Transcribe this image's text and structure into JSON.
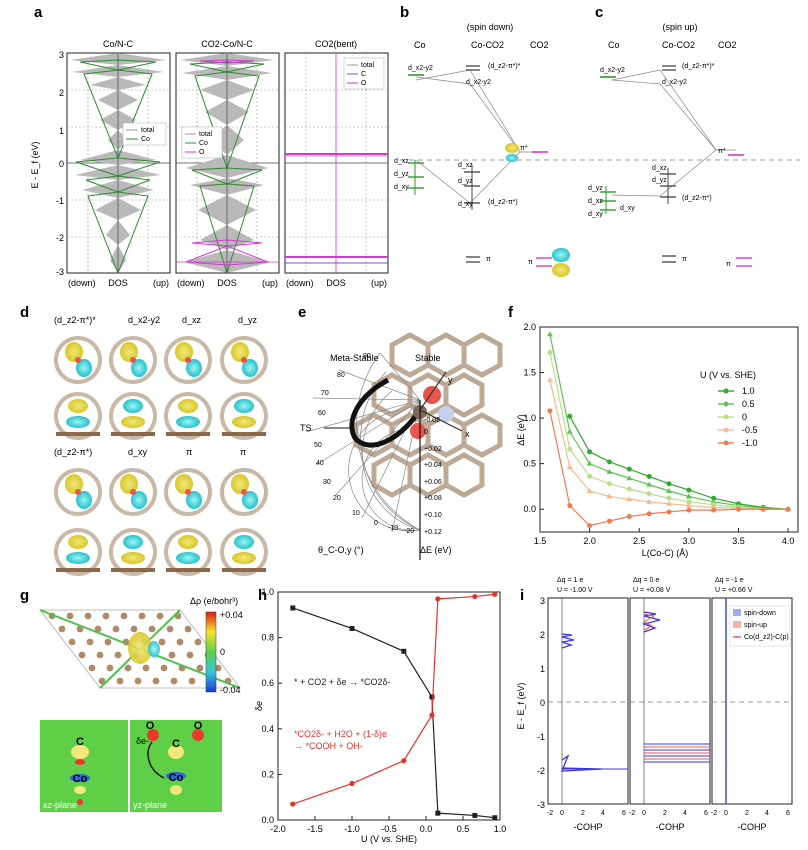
{
  "panels": {
    "a": {
      "label": "a",
      "ylabel": "E - E_f (eV)",
      "yticks": [
        "3",
        "2",
        "1",
        "0",
        "-1",
        "-2",
        "-3"
      ],
      "xlabels": [
        "(down)",
        "DOS",
        "(up)"
      ],
      "subplots": [
        {
          "title": "Co/N-C",
          "legend": [
            "total",
            "Co"
          ]
        },
        {
          "title": "CO2-Co/N-C",
          "legend": [
            "total",
            "Co",
            "O"
          ]
        },
        {
          "title": "CO2(bent)",
          "legend": [
            "total",
            "C",
            "O"
          ]
        }
      ]
    },
    "b": {
      "label": "b",
      "spin": "(spin down)",
      "columns": [
        "Co",
        "Co-CO2",
        "CO2"
      ],
      "levels": [
        "d_x2-y2",
        "(d_z2-π*)*",
        "d_x2-y2",
        "π*",
        "d_xz",
        "d_yz",
        "d_xz",
        "d_xy",
        "d_yz",
        "d_xy",
        "(d_z2-π*)",
        "π",
        "π"
      ]
    },
    "c": {
      "label": "c",
      "spin": "(spin up)",
      "columns": [
        "Co",
        "Co-CO2",
        "CO2"
      ],
      "levels": [
        "d_x2-y2",
        "(d_z2-π*)*",
        "d_x2-y2",
        "π*",
        "d_xz",
        "d_yz",
        "d_yz",
        "d_xz",
        "d_xy",
        "(d_z2-π*)",
        "d_xy",
        "π",
        "π"
      ]
    },
    "d": {
      "label": "d",
      "orbitals_top": [
        "(d_z2-π*)*",
        "d_x2-y2",
        "d_xz",
        "d_yz"
      ],
      "orbitals_bottom": [
        "(d_z2-π*)",
        "d_xy",
        "π",
        "π"
      ]
    },
    "e": {
      "label": "e",
      "annotations": [
        "Meta-Stable",
        "Stable",
        "TS",
        "y",
        "x"
      ],
      "theta_ticks": [
        "90",
        "80",
        "70",
        "60",
        "50",
        "40",
        "30",
        "20",
        "10",
        "0",
        "-10",
        "-20"
      ],
      "theta_label": "θ_C-O,y (°)",
      "r_ticks": [
        "-0.02",
        "0",
        "+0.02",
        "+0.04",
        "+0.06",
        "+0.08",
        "+0.10",
        "+0.12"
      ],
      "r_label": "ΔE (eV)"
    },
    "g": {
      "label": "g",
      "colorbar_title": "Δρ (e/bohr³)",
      "colorbar_ticks": [
        "+0.04",
        "0",
        "-0.04"
      ],
      "planes": [
        "xz-plane",
        "yz-plane"
      ],
      "atoms": [
        "C",
        "O",
        "O",
        "Co",
        "C",
        "O",
        "Co"
      ],
      "charge_label": "δe-"
    },
    "i": {
      "label": "i",
      "subplots": [
        {
          "dq": "Δq = 1 e",
          "U": "U = -1.00 V"
        },
        {
          "dq": "Δq = 0 e",
          "U": "U = +0.08 V"
        },
        {
          "dq": "Δq = -1 e",
          "U": "U = +0.66 V"
        }
      ],
      "ylabel": "E - E_f (eV)",
      "yticks": [
        "3",
        "2",
        "1",
        "0",
        "-1",
        "-2",
        "-3"
      ],
      "xticks": [
        "-2",
        "0",
        "2",
        "4",
        "6"
      ],
      "xlabel": "-COHP",
      "legend": [
        "spin-down",
        "spin-up",
        "Co(d_z2)-C(p)"
      ]
    }
  },
  "chart_data": [
    {
      "panel": "f",
      "type": "line",
      "xlabel": "L(Co-C) (Å)",
      "ylabel": "ΔE (eV)",
      "xlim": [
        1.6,
        4.0
      ],
      "ylim": [
        0,
        2.0
      ],
      "xticks": [
        "1.5",
        "2.0",
        "2.5",
        "3.0",
        "3.5",
        "4.0"
      ],
      "yticks": [
        "0.0",
        "0.5",
        "1.0",
        "1.5",
        "2.0"
      ],
      "legend_title": "U (V vs. SHE)",
      "x": [
        1.6,
        1.8,
        2.0,
        2.2,
        2.4,
        2.6,
        2.8,
        3.0,
        3.25,
        3.5,
        3.75,
        4.0
      ],
      "series": [
        {
          "name": "1.0",
          "color": "#2fa82f",
          "values": [
            null,
            1.02,
            0.63,
            0.52,
            0.44,
            0.36,
            0.28,
            0.21,
            0.12,
            0.06,
            0.02,
            0.0
          ]
        },
        {
          "name": "0.5",
          "color": "#5cc44f",
          "values": [
            1.92,
            0.85,
            0.5,
            0.41,
            0.34,
            0.27,
            0.2,
            0.14,
            0.08,
            0.04,
            0.01,
            0.0
          ]
        },
        {
          "name": "0",
          "color": "#b7df8a",
          "values": [
            1.72,
            0.66,
            0.36,
            0.28,
            0.22,
            0.17,
            0.12,
            0.08,
            0.05,
            0.02,
            0.0,
            0.0
          ]
        },
        {
          "name": "-0.5",
          "color": "#f6b98e",
          "values": [
            1.42,
            0.46,
            0.2,
            0.14,
            0.11,
            0.08,
            0.06,
            0.04,
            0.02,
            0.01,
            0.0,
            0.0
          ]
        },
        {
          "name": "-1.0",
          "color": "#ef7b50",
          "values": [
            1.08,
            0.04,
            -0.18,
            -0.13,
            -0.08,
            -0.05,
            -0.03,
            -0.01,
            -0.01,
            0.0,
            0.0,
            0.0
          ]
        }
      ]
    },
    {
      "panel": "h",
      "type": "line",
      "xlabel": "U (V vs. SHE)",
      "ylabel": "δe",
      "xlim": [
        -2.0,
        1.0
      ],
      "ylim": [
        0,
        1.0
      ],
      "xticks": [
        "-2.0",
        "-1.5",
        "-1.0",
        "-0.5",
        "0.0",
        "0.5",
        "1.0"
      ],
      "yticks": [
        "0.0",
        "0.2",
        "0.4",
        "0.6",
        "0.8",
        "1.0"
      ],
      "annotations": [
        "* + CO2 + δe → *CO2δ-",
        "*CO2δ- + H2O + (1-δ)e",
        "→ *COOH + OH-"
      ],
      "series": [
        {
          "name": "* + CO2 + δe → *CO2δ-",
          "color": "#222222",
          "x": [
            -1.8,
            -1.0,
            -0.3,
            0.08,
            0.16,
            0.66,
            0.93
          ],
          "values": [
            0.93,
            0.84,
            0.74,
            0.54,
            0.03,
            0.02,
            0.01
          ]
        },
        {
          "name": "*CO2δ- + H2O + (1-δ)e → *COOH + OH-",
          "color": "#e8312a",
          "x": [
            -1.8,
            -1.0,
            -0.3,
            0.08,
            0.16,
            0.66,
            0.93
          ],
          "values": [
            0.07,
            0.16,
            0.26,
            0.46,
            0.97,
            0.98,
            0.99
          ]
        }
      ]
    }
  ]
}
